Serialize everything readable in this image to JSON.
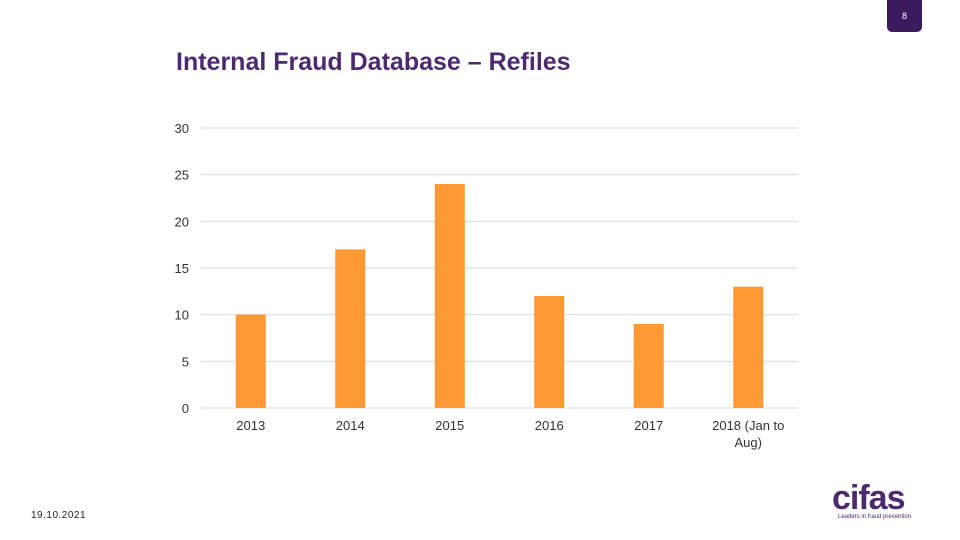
{
  "page_number": "8",
  "date": "19.10.2021",
  "brand": {
    "logo_text": "cifas",
    "tagline": "Leaders in fraud prevention"
  },
  "colors": {
    "bar": "#FF9933",
    "title": "#4B2A6E",
    "grid": "#D9D9D9",
    "badge": "#3D1A5E"
  },
  "chart_data": {
    "type": "bar",
    "title": "Internal Fraud Database – Refiles",
    "categories": [
      "2013",
      "2014",
      "2015",
      "2016",
      "2017",
      "2018 (Jan to Aug)"
    ],
    "values": [
      10,
      17,
      24,
      12,
      9,
      13
    ],
    "yticks": [
      0,
      5,
      10,
      15,
      20,
      25,
      30
    ],
    "ylim": [
      0,
      30
    ],
    "grid": true,
    "legend": "none"
  }
}
